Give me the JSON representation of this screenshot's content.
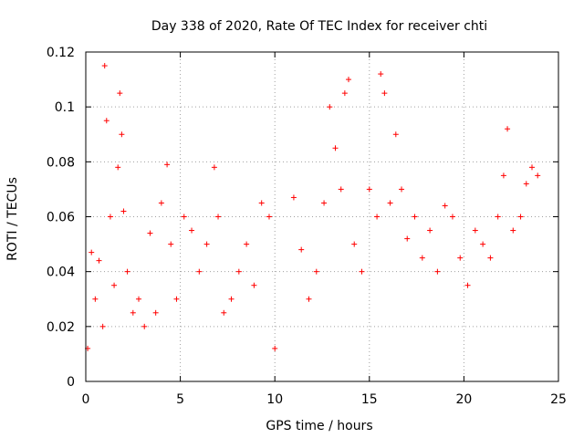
{
  "chart_data": {
    "type": "scatter",
    "title": "Day 338 of 2020, Rate Of TEC Index for receiver chti",
    "xlabel": "GPS time / hours",
    "ylabel": "ROTI / TECUs",
    "xlim": [
      0,
      25
    ],
    "ylim": [
      0,
      0.12
    ],
    "xticks": [
      0,
      5,
      10,
      15,
      20,
      25
    ],
    "xtick_labels": [
      "0",
      "5",
      "10",
      "15",
      "20",
      "25"
    ],
    "yticks": [
      0,
      0.02,
      0.04,
      0.06,
      0.08,
      0.1,
      0.12
    ],
    "ytick_labels": [
      "0",
      "0.02",
      "0.04",
      "0.06",
      "0.08",
      "0.1",
      "0.12"
    ],
    "grid": true,
    "marker": "plus",
    "color": "#ff0000",
    "series": [
      {
        "name": "ROTI",
        "x": [
          0.1,
          0.3,
          0.5,
          0.7,
          0.9,
          1.0,
          1.1,
          1.3,
          1.5,
          1.7,
          1.8,
          1.9,
          2.0,
          2.2,
          2.5,
          2.8,
          3.1,
          3.4,
          3.7,
          4.0,
          4.3,
          4.5,
          4.8,
          5.2,
          5.6,
          6.0,
          6.4,
          6.8,
          7.0,
          7.3,
          7.7,
          8.1,
          8.5,
          8.9,
          9.3,
          9.7,
          10.0,
          11.0,
          11.4,
          11.8,
          12.2,
          12.6,
          12.9,
          13.2,
          13.5,
          13.7,
          13.9,
          14.2,
          14.6,
          15.0,
          15.4,
          15.6,
          15.8,
          16.1,
          16.4,
          16.7,
          17.0,
          17.4,
          17.8,
          18.2,
          18.6,
          19.0,
          19.4,
          19.8,
          20.2,
          20.6,
          21.0,
          21.4,
          21.8,
          22.1,
          22.3,
          22.6,
          23.0,
          23.3,
          23.6,
          23.9
        ],
        "y": [
          0.012,
          0.047,
          0.03,
          0.044,
          0.02,
          0.115,
          0.095,
          0.06,
          0.035,
          0.078,
          0.105,
          0.09,
          0.062,
          0.04,
          0.025,
          0.03,
          0.02,
          0.054,
          0.025,
          0.065,
          0.079,
          0.05,
          0.03,
          0.06,
          0.055,
          0.04,
          0.05,
          0.078,
          0.06,
          0.025,
          0.03,
          0.04,
          0.05,
          0.035,
          0.065,
          0.06,
          0.012,
          0.067,
          0.048,
          0.03,
          0.04,
          0.065,
          0.1,
          0.085,
          0.07,
          0.105,
          0.11,
          0.05,
          0.04,
          0.07,
          0.06,
          0.112,
          0.105,
          0.065,
          0.09,
          0.07,
          0.052,
          0.06,
          0.045,
          0.055,
          0.04,
          0.064,
          0.06,
          0.045,
          0.035,
          0.055,
          0.05,
          0.045,
          0.06,
          0.075,
          0.092,
          0.055,
          0.06,
          0.072,
          0.078,
          0.075
        ]
      }
    ]
  }
}
